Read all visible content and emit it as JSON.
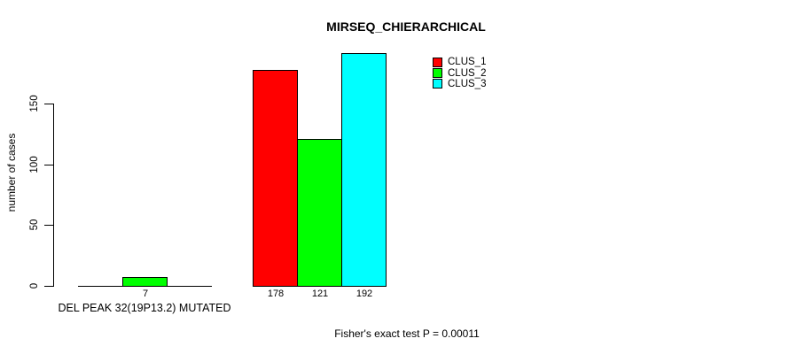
{
  "chart_data": {
    "type": "bar",
    "title": "MIRSEQ_CHIERARCHICAL",
    "ylabel": "number of cases",
    "xlabel": "",
    "footnote": "Fisher's exact test P = 0.00011",
    "yticks": [
      0,
      50,
      100,
      150
    ],
    "ylim": [
      0,
      192
    ],
    "grid": false,
    "legend_position": "top-right",
    "series": [
      {
        "name": "CLUS_1",
        "color": "#ff0000"
      },
      {
        "name": "CLUS_2",
        "color": "#00ff00"
      },
      {
        "name": "CLUS_3",
        "color": "#00ffff"
      }
    ],
    "groups": [
      {
        "label": "DEL PEAK 32(19P13.2) MUTATED",
        "values": [
          0,
          7,
          0
        ],
        "bar_labels": [
          "",
          "7",
          ""
        ]
      },
      {
        "label": "",
        "values": [
          178,
          121,
          192
        ],
        "bar_labels": [
          "178",
          "121",
          "192"
        ]
      }
    ]
  }
}
